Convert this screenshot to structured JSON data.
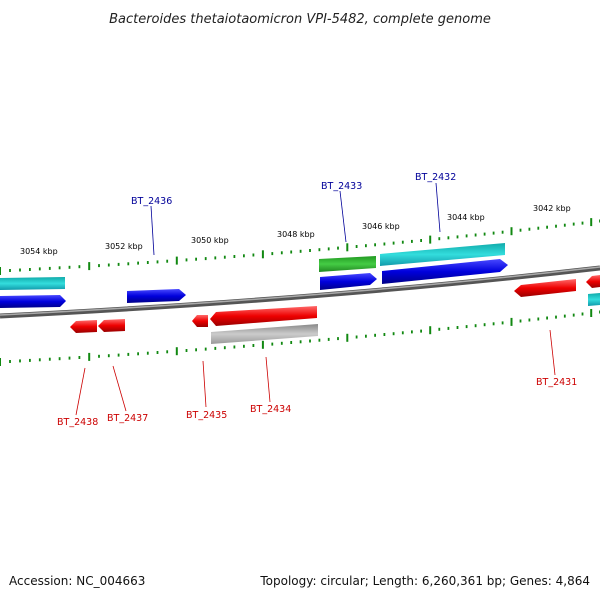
{
  "title": "Bacteroides thetaiotaomicron VPI-5482, complete genome",
  "footer": {
    "accession": "Accession: NC_004663",
    "summary": "Topology: circular; Length: 6,260,361 bp; Genes: 4,864"
  },
  "colors": {
    "forward_cds": "#0000dd",
    "reverse_cds": "#ee0000",
    "cyan_feature": "#22cccc",
    "green_feature": "#33bb33",
    "gray_feature": "#aaaaaa",
    "backbone": "#808080",
    "tick": "#118811",
    "label_forward": "#000099",
    "label_reverse": "#cc0000"
  },
  "kbp_labels": [
    "3054 kbp",
    "3052 kbp",
    "3050 kbp",
    "3048 kbp",
    "3046 kbp",
    "3044 kbp",
    "3042 kbp"
  ],
  "gene_labels": {
    "top": [
      "BT_2436",
      "BT_2433",
      "BT_2432"
    ],
    "bottom": [
      "BT_2438",
      "BT_2437",
      "BT_2435",
      "BT_2434",
      "BT_2431"
    ]
  }
}
